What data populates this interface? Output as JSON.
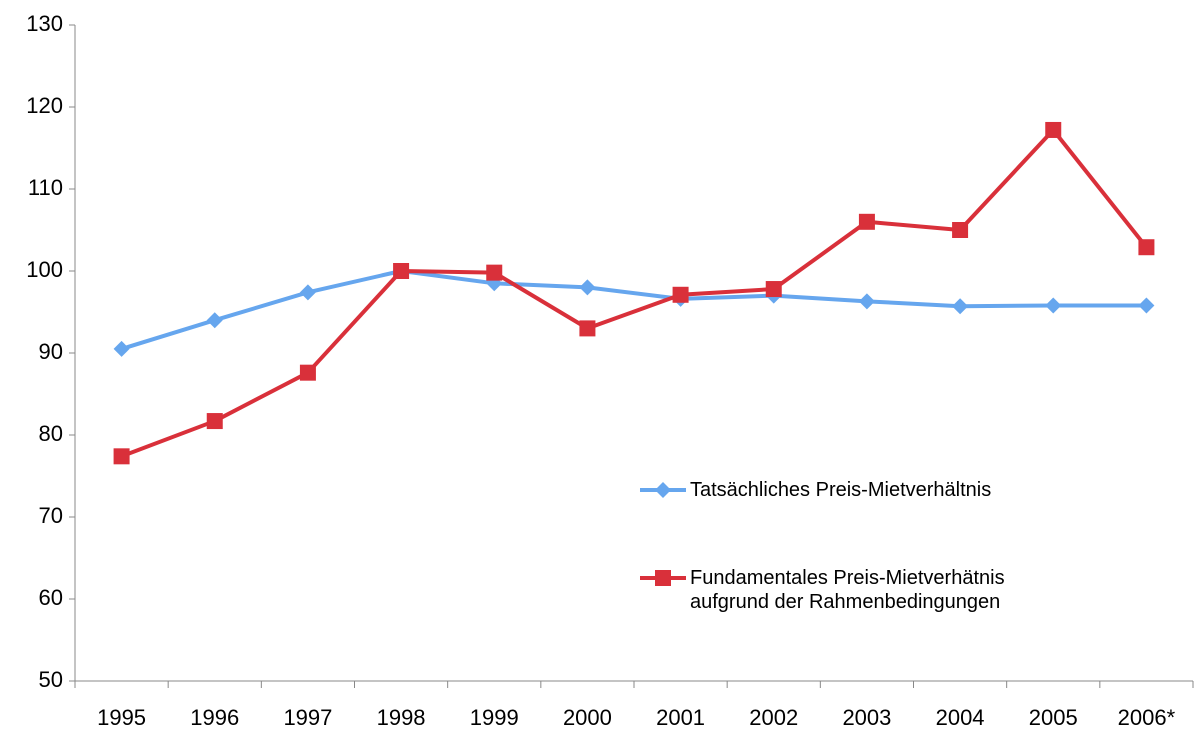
{
  "chart_data": {
    "type": "line",
    "categories": [
      "1995",
      "1996",
      "1997",
      "1998",
      "1999",
      "2000",
      "2001",
      "2002",
      "2003",
      "2004",
      "2005",
      "2006*"
    ],
    "series": [
      {
        "name": "Tatsächliches Preis-Mietverhältnis",
        "color": "#66a6ee",
        "marker": "diamond",
        "values": [
          90.5,
          94,
          97.4,
          100,
          98.5,
          98,
          96.6,
          97,
          96.3,
          95.7,
          95.8,
          95.8
        ]
      },
      {
        "name": "Fundamentales Preis-Mietverhätnis\naufgrund der Rahmenbedingungen",
        "color": "#d9303a",
        "marker": "square",
        "values": [
          77.4,
          81.7,
          87.6,
          100,
          99.8,
          93,
          97.1,
          97.8,
          106,
          105,
          117.2,
          102.9
        ]
      }
    ],
    "ylim": [
      50,
      130
    ],
    "yticks": [
      50,
      60,
      70,
      80,
      90,
      100,
      110,
      120,
      130
    ],
    "grid": false,
    "legend": "right"
  }
}
